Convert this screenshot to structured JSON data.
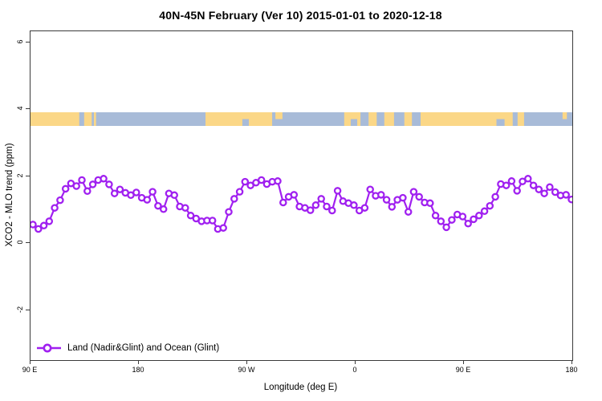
{
  "title": "40N-45N February (Ver 10)  2015-01-01 to 2020-12-18",
  "legend": {
    "label": "Land (Nadir&Glint) and Ocean (Glint)"
  },
  "chart_data": {
    "type": "line",
    "title": "40N-45N February (Ver 10)  2015-01-01 to 2020-12-18",
    "xlabel": "Longitude (deg E)",
    "ylabel": "XCO2 - MLO trend (ppm)",
    "x_tick_labels": [
      "90 E",
      "180",
      "90 W",
      "0",
      "90 E",
      "180"
    ],
    "y_tick_labels": [
      "6",
      "4",
      "2",
      "0",
      "-2"
    ],
    "y_tick_values": [
      6,
      4,
      2,
      0,
      -2
    ],
    "ylim": [
      -3.5,
      6.3
    ],
    "x_axis_note": "longitude wraps eastward from 90E through 180, 90W, 0, 90E to 180 (450 deg span)",
    "grid": false,
    "legend_position": "bottom-left",
    "series": [
      {
        "name": "Land (Nadir&Glint) and Ocean (Glint)",
        "color": "#A020F0",
        "marker": "open-circle",
        "values": [
          0.55,
          0.42,
          0.52,
          0.65,
          1.05,
          1.28,
          1.62,
          1.78,
          1.7,
          1.88,
          1.55,
          1.75,
          1.88,
          1.92,
          1.75,
          1.48,
          1.6,
          1.5,
          1.43,
          1.51,
          1.35,
          1.29,
          1.53,
          1.11,
          1.01,
          1.48,
          1.43,
          1.09,
          1.05,
          0.82,
          0.73,
          0.65,
          0.67,
          0.67,
          0.42,
          0.45,
          0.93,
          1.32,
          1.53,
          1.83,
          1.72,
          1.8,
          1.88,
          1.76,
          1.83,
          1.85,
          1.21,
          1.38,
          1.44,
          1.09,
          1.05,
          0.98,
          1.13,
          1.32,
          1.09,
          0.97,
          1.56,
          1.25,
          1.19,
          1.13,
          0.97,
          1.05,
          1.6,
          1.41,
          1.44,
          1.29,
          1.08,
          1.29,
          1.35,
          0.93,
          1.53,
          1.38,
          1.21,
          1.19,
          0.82,
          0.65,
          0.47,
          0.69,
          0.85,
          0.79,
          0.58,
          0.71,
          0.82,
          0.95,
          1.11,
          1.38,
          1.76,
          1.72,
          1.85,
          1.56,
          1.84,
          1.92,
          1.72,
          1.6,
          1.48,
          1.67,
          1.52,
          1.42,
          1.44,
          1.3
        ]
      }
    ],
    "land_ocean_band": {
      "description": "land/ocean strip for 40N-45N drawn across the plot",
      "y_range_ppm": [
        3.5,
        3.9
      ],
      "ocean_color": "#A8BBD8",
      "land_color": "#FBD787",
      "segments_frac": [
        {
          "from": 0.0,
          "to": 0.09,
          "type": "land"
        },
        {
          "from": 0.099,
          "to": 0.113,
          "type": "land"
        },
        {
          "from": 0.117,
          "to": 0.121,
          "type": "land"
        },
        {
          "from": 0.323,
          "to": 0.446,
          "type": "land"
        },
        {
          "from": 0.452,
          "to": 0.465,
          "type": "land",
          "half": "top"
        },
        {
          "from": 0.579,
          "to": 0.609,
          "type": "land"
        },
        {
          "from": 0.624,
          "to": 0.639,
          "type": "land"
        },
        {
          "from": 0.653,
          "to": 0.671,
          "type": "land"
        },
        {
          "from": 0.69,
          "to": 0.704,
          "type": "land"
        },
        {
          "from": 0.72,
          "to": 0.89,
          "type": "land"
        },
        {
          "from": 0.899,
          "to": 0.911,
          "type": "land"
        },
        {
          "from": 0.982,
          "to": 0.99,
          "type": "land",
          "half": "top"
        },
        {
          "from": 0.391,
          "to": 0.403,
          "type": "ocean",
          "half": "bottom"
        },
        {
          "from": 0.591,
          "to": 0.603,
          "type": "ocean",
          "half": "bottom"
        },
        {
          "from": 0.86,
          "to": 0.875,
          "type": "ocean",
          "half": "bottom"
        }
      ]
    }
  }
}
